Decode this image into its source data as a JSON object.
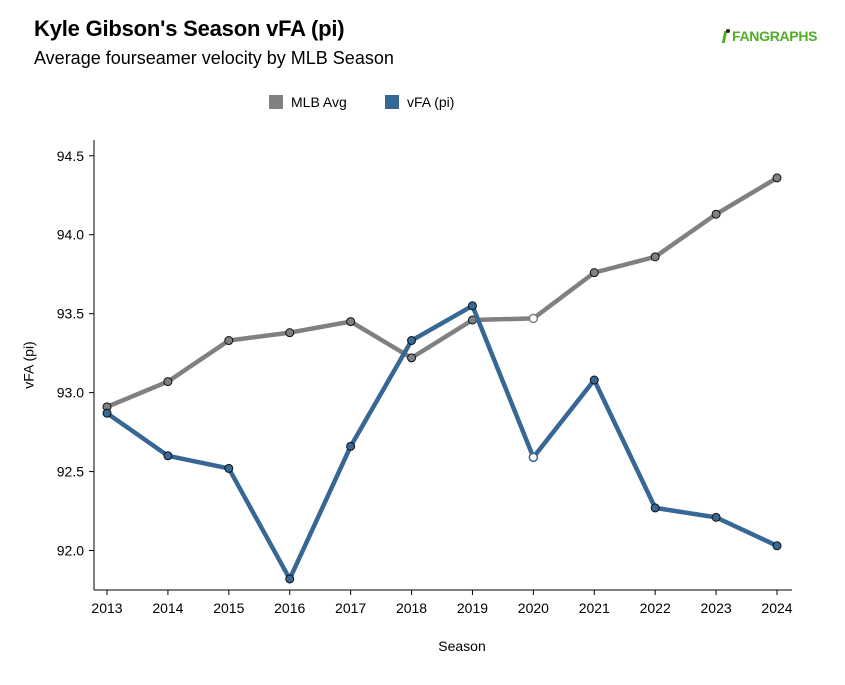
{
  "header": {
    "title": "Kyle Gibson's Season vFA (pi)",
    "subtitle": "Average fourseamer velocity by MLB Season",
    "logo_text": "FANGRAPHS"
  },
  "colors": {
    "mlb_avg": "#808080",
    "player": "#376795",
    "logo": "#50ae26"
  },
  "chart_data": {
    "type": "line",
    "title": "Kyle Gibson's Season vFA (pi)",
    "subtitle": "Average fourseamer velocity by MLB Season",
    "xlabel": "Season",
    "ylabel": "vFA (pi)",
    "x": [
      2013,
      2014,
      2015,
      2016,
      2017,
      2018,
      2019,
      2020,
      2021,
      2022,
      2023,
      2024
    ],
    "ylim": [
      91.75,
      94.6
    ],
    "yticks": [
      92.0,
      92.5,
      93.0,
      93.5,
      94.0,
      94.5
    ],
    "ytick_labels": [
      "92.0",
      "92.5",
      "93.0",
      "93.5",
      "94.0",
      "94.5"
    ],
    "xtick_labels": [
      "2013",
      "2014",
      "2015",
      "2016",
      "2017",
      "2018",
      "2019",
      "2020",
      "2021",
      "2022",
      "2023",
      "2024"
    ],
    "grid": false,
    "legend_position": "top",
    "series": [
      {
        "name": "MLB Avg",
        "color": "#808080",
        "values": [
          92.91,
          93.07,
          93.33,
          93.38,
          93.45,
          93.22,
          93.46,
          93.47,
          93.76,
          93.86,
          94.13,
          94.36
        ],
        "hollow_points": [
          2020
        ]
      },
      {
        "name": "vFA (pi)",
        "color": "#376795",
        "values": [
          92.87,
          92.6,
          92.52,
          91.82,
          92.66,
          93.33,
          93.55,
          92.59,
          93.08,
          92.27,
          92.21,
          92.03
        ],
        "hollow_points": [
          2020
        ]
      }
    ]
  }
}
